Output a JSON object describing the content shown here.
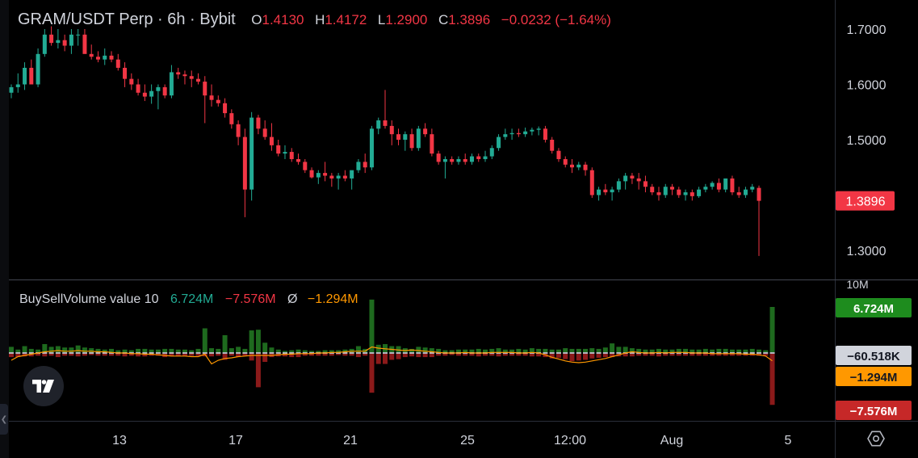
{
  "header": {
    "symbol": "GRAM/USDT Perp · 6h · Bybit",
    "o_label": "O",
    "o_value": "1.4130",
    "h_label": "H",
    "h_value": "1.4172",
    "l_label": "L",
    "l_value": "1.2900",
    "c_label": "C",
    "c_value": "1.3896",
    "change": "−0.0232 (−1.64%)"
  },
  "volume_header": {
    "name": "BuySellVolume value 10",
    "buy": "6.724M",
    "sell": "−7.576M",
    "avg_symbol": "Ø",
    "avg": "−1.294M"
  },
  "colors": {
    "up": "#22ab94",
    "down": "#f23645",
    "buy_volume": "#1e6a1e",
    "sell_volume": "#8b1a1a",
    "average_line": "#ff9800",
    "background": "#000000"
  },
  "chart_data": [
    {
      "type": "candlestick",
      "price_axis": {
        "ticks": [
          "1.7000",
          "1.6000",
          "1.5000",
          "1.3000"
        ],
        "last_price": "1.3896",
        "ylim": [
          1.26,
          1.75
        ]
      },
      "x_ticks": [
        "13",
        "17",
        "21",
        "25",
        "12:00",
        "Aug",
        "5"
      ],
      "candles_ohlc": [
        [
          1.585,
          1.6,
          1.575,
          1.595
        ],
        [
          1.595,
          1.62,
          1.585,
          1.6
        ],
        [
          1.6,
          1.64,
          1.59,
          1.63
        ],
        [
          1.63,
          1.645,
          1.6,
          1.6
        ],
        [
          1.6,
          1.665,
          1.595,
          1.655
        ],
        [
          1.655,
          1.7,
          1.65,
          1.69
        ],
        [
          1.69,
          1.705,
          1.67,
          1.675
        ],
        [
          1.675,
          1.7,
          1.665,
          1.68
        ],
        [
          1.68,
          1.69,
          1.66,
          1.67
        ],
        [
          1.67,
          1.7,
          1.655,
          1.69
        ],
        [
          1.69,
          1.7,
          1.67,
          1.69
        ],
        [
          1.69,
          1.7,
          1.66,
          1.655
        ],
        [
          1.655,
          1.672,
          1.645,
          1.65
        ],
        [
          1.65,
          1.66,
          1.64,
          1.645
        ],
        [
          1.645,
          1.665,
          1.635,
          1.652
        ],
        [
          1.652,
          1.66,
          1.64,
          1.645
        ],
        [
          1.645,
          1.655,
          1.625,
          1.63
        ],
        [
          1.63,
          1.64,
          1.595,
          1.61
        ],
        [
          1.61,
          1.62,
          1.59,
          1.6
        ],
        [
          1.6,
          1.61,
          1.58,
          1.585
        ],
        [
          1.585,
          1.6,
          1.57,
          1.578
        ],
        [
          1.578,
          1.6,
          1.565,
          1.588
        ],
        [
          1.588,
          1.6,
          1.555,
          1.595
        ],
        [
          1.595,
          1.6,
          1.575,
          1.58
        ],
        [
          1.58,
          1.635,
          1.575,
          1.622
        ],
        [
          1.622,
          1.63,
          1.61,
          1.618
        ],
        [
          1.618,
          1.625,
          1.6,
          1.615
        ],
        [
          1.615,
          1.625,
          1.595,
          1.61
        ],
        [
          1.61,
          1.62,
          1.6,
          1.605
        ],
        [
          1.605,
          1.615,
          1.53,
          1.58
        ],
        [
          1.58,
          1.6,
          1.56,
          1.572
        ],
        [
          1.572,
          1.58,
          1.56,
          1.566
        ],
        [
          1.566,
          1.575,
          1.54,
          1.548
        ],
        [
          1.548,
          1.555,
          1.52,
          1.528
        ],
        [
          1.528,
          1.535,
          1.49,
          1.505
        ],
        [
          1.505,
          1.52,
          1.36,
          1.41
        ],
        [
          1.41,
          1.55,
          1.39,
          1.54
        ],
        [
          1.54,
          1.545,
          1.51,
          1.52
        ],
        [
          1.52,
          1.535,
          1.5,
          1.505
        ],
        [
          1.505,
          1.53,
          1.48,
          1.49
        ],
        [
          1.49,
          1.5,
          1.47,
          1.475
        ],
        [
          1.475,
          1.49,
          1.465,
          1.478
        ],
        [
          1.478,
          1.485,
          1.46,
          1.465
        ],
        [
          1.465,
          1.475,
          1.455,
          1.46
        ],
        [
          1.46,
          1.465,
          1.44,
          1.445
        ],
        [
          1.445,
          1.45,
          1.43,
          1.432
        ],
        [
          1.432,
          1.445,
          1.42,
          1.44
        ],
        [
          1.44,
          1.46,
          1.425,
          1.435
        ],
        [
          1.435,
          1.44,
          1.415,
          1.43
        ],
        [
          1.43,
          1.44,
          1.41,
          1.435
        ],
        [
          1.435,
          1.445,
          1.425,
          1.43
        ],
        [
          1.43,
          1.44,
          1.41,
          1.445
        ],
        [
          1.445,
          1.465,
          1.44,
          1.46
        ],
        [
          1.46,
          1.475,
          1.44,
          1.45
        ],
        [
          1.45,
          1.525,
          1.445,
          1.52
        ],
        [
          1.52,
          1.54,
          1.51,
          1.535
        ],
        [
          1.535,
          1.59,
          1.52,
          1.525
        ],
        [
          1.525,
          1.535,
          1.49,
          1.51
        ],
        [
          1.51,
          1.52,
          1.49,
          1.5
        ],
        [
          1.5,
          1.515,
          1.48,
          1.51
        ],
        [
          1.51,
          1.52,
          1.48,
          1.485
        ],
        [
          1.485,
          1.525,
          1.48,
          1.52
        ],
        [
          1.52,
          1.53,
          1.505,
          1.51
        ],
        [
          1.51,
          1.52,
          1.47,
          1.475
        ],
        [
          1.475,
          1.48,
          1.455,
          1.46
        ],
        [
          1.46,
          1.47,
          1.43,
          1.465
        ],
        [
          1.465,
          1.47,
          1.455,
          1.46
        ],
        [
          1.46,
          1.47,
          1.455,
          1.465
        ],
        [
          1.465,
          1.475,
          1.455,
          1.46
        ],
        [
          1.46,
          1.475,
          1.455,
          1.47
        ],
        [
          1.47,
          1.475,
          1.46,
          1.465
        ],
        [
          1.465,
          1.48,
          1.46,
          1.47
        ],
        [
          1.47,
          1.49,
          1.465,
          1.485
        ],
        [
          1.485,
          1.51,
          1.48,
          1.505
        ],
        [
          1.505,
          1.52,
          1.5,
          1.51
        ],
        [
          1.51,
          1.52,
          1.5,
          1.512
        ],
        [
          1.512,
          1.52,
          1.505,
          1.51
        ],
        [
          1.51,
          1.522,
          1.505,
          1.515
        ],
        [
          1.515,
          1.522,
          1.508,
          1.518
        ],
        [
          1.518,
          1.524,
          1.508,
          1.52
        ],
        [
          1.52,
          1.525,
          1.495,
          1.5
        ],
        [
          1.5,
          1.505,
          1.475,
          1.48
        ],
        [
          1.48,
          1.485,
          1.46,
          1.465
        ],
        [
          1.465,
          1.47,
          1.45,
          1.455
        ],
        [
          1.455,
          1.465,
          1.44,
          1.45
        ],
        [
          1.45,
          1.46,
          1.445,
          1.455
        ],
        [
          1.455,
          1.46,
          1.435,
          1.445
        ],
        [
          1.445,
          1.45,
          1.395,
          1.4
        ],
        [
          1.4,
          1.415,
          1.39,
          1.41
        ],
        [
          1.41,
          1.42,
          1.4,
          1.405
        ],
        [
          1.405,
          1.415,
          1.39,
          1.41
        ],
        [
          1.41,
          1.43,
          1.405,
          1.425
        ],
        [
          1.425,
          1.44,
          1.41,
          1.435
        ],
        [
          1.435,
          1.44,
          1.42,
          1.43
        ],
        [
          1.43,
          1.44,
          1.41,
          1.425
        ],
        [
          1.425,
          1.435,
          1.405,
          1.415
        ],
        [
          1.415,
          1.42,
          1.4,
          1.405
        ],
        [
          1.405,
          1.415,
          1.39,
          1.4
        ],
        [
          1.4,
          1.42,
          1.395,
          1.415
        ],
        [
          1.415,
          1.42,
          1.4,
          1.41
        ],
        [
          1.41,
          1.415,
          1.395,
          1.4
        ],
        [
          1.4,
          1.41,
          1.39,
          1.405
        ],
        [
          1.405,
          1.41,
          1.39,
          1.398
        ],
        [
          1.398,
          1.415,
          1.395,
          1.41
        ],
        [
          1.41,
          1.42,
          1.405,
          1.415
        ],
        [
          1.415,
          1.425,
          1.41,
          1.422
        ],
        [
          1.422,
          1.43,
          1.405,
          1.41
        ],
        [
          1.41,
          1.43,
          1.405,
          1.43
        ],
        [
          1.43,
          1.435,
          1.4,
          1.405
        ],
        [
          1.405,
          1.415,
          1.395,
          1.4
        ],
        [
          1.4,
          1.415,
          1.395,
          1.41
        ],
        [
          1.41,
          1.42,
          1.405,
          1.415
        ],
        [
          1.413,
          1.4172,
          1.29,
          1.3896
        ]
      ]
    },
    {
      "type": "bar",
      "title": "BuySellVolume value 10",
      "axis_ticks": [
        "10M"
      ],
      "value_labels": [
        "6.724M",
        "−60.518K",
        "−1.294M",
        "−7.576M"
      ],
      "buy_values": [
        0.9,
        0.5,
        1.0,
        0.6,
        0.5,
        1.3,
        0.9,
        1.0,
        0.8,
        0.8,
        1.1,
        0.8,
        0.7,
        0.6,
        0.5,
        0.6,
        0.4,
        0.5,
        0.4,
        0.6,
        0.6,
        0.5,
        0.5,
        0.6,
        0.6,
        0.5,
        0.5,
        0.4,
        0.6,
        3.6,
        0.7,
        0.6,
        2.6,
        0.7,
        0.9,
        0.6,
        3.3,
        3.4,
        1.5,
        0.8,
        0.5,
        0.3,
        0.4,
        0.5,
        0.4,
        0.3,
        0.3,
        0.4,
        0.4,
        0.4,
        0.5,
        0.6,
        1.0,
        0.6,
        7.8,
        1.2,
        1.3,
        1.0,
        1.0,
        0.7,
        0.6,
        0.9,
        0.8,
        0.7,
        0.6,
        0.4,
        0.4,
        0.5,
        0.5,
        0.5,
        0.6,
        0.5,
        0.6,
        0.7,
        0.5,
        0.5,
        0.6,
        0.5,
        0.7,
        0.6,
        0.6,
        0.5,
        0.5,
        0.7,
        0.6,
        0.6,
        0.6,
        0.7,
        0.6,
        0.8,
        1.4,
        0.9,
        0.9,
        0.7,
        0.6,
        0.5,
        0.5,
        0.6,
        0.5,
        0.5,
        0.6,
        0.6,
        0.5,
        0.5,
        0.6,
        0.5,
        0.6,
        0.6,
        0.5,
        0.5,
        0.5,
        0.6,
        0.5,
        0.4,
        6.724
      ],
      "sell_values": [
        0.6,
        0.6,
        0.5,
        0.5,
        0.4,
        0.5,
        0.4,
        0.6,
        0.4,
        0.4,
        0.5,
        0.4,
        0.3,
        0.4,
        0.4,
        0.4,
        0.4,
        0.5,
        0.4,
        0.5,
        0.5,
        0.4,
        0.4,
        0.6,
        0.5,
        0.5,
        0.4,
        0.4,
        0.4,
        0.5,
        0.5,
        0.4,
        1.0,
        0.4,
        0.6,
        0.4,
        1.1,
        5.0,
        1.3,
        0.6,
        0.5,
        0.5,
        0.6,
        0.6,
        0.4,
        0.4,
        0.4,
        0.4,
        0.4,
        0.3,
        0.4,
        0.4,
        0.6,
        0.4,
        5.8,
        1.6,
        1.6,
        1.0,
        0.9,
        0.6,
        0.5,
        0.6,
        0.6,
        0.6,
        0.4,
        0.4,
        0.3,
        0.4,
        0.4,
        0.4,
        0.5,
        0.4,
        0.4,
        0.5,
        0.4,
        0.4,
        0.4,
        0.4,
        0.5,
        0.5,
        0.6,
        0.8,
        0.7,
        0.9,
        1.2,
        1.1,
        1.0,
        0.8,
        0.7,
        0.6,
        0.6,
        0.5,
        0.5,
        0.5,
        0.4,
        0.4,
        0.4,
        0.5,
        0.4,
        0.4,
        0.4,
        0.4,
        0.4,
        0.4,
        0.4,
        0.4,
        0.4,
        0.4,
        0.4,
        0.4,
        0.4,
        0.4,
        0.4,
        0.4,
        7.576
      ],
      "average_values": [
        -1.2,
        -0.6,
        -0.4,
        -0.2,
        0.0,
        0.2,
        0.3,
        0.4,
        0.3,
        0.3,
        0.4,
        0.3,
        0.3,
        0.2,
        0.2,
        0.1,
        0.0,
        0.0,
        -0.1,
        -0.1,
        -0.2,
        -0.2,
        -0.3,
        -0.4,
        -0.5,
        -0.5,
        -0.5,
        -0.6,
        -0.6,
        -0.2,
        -1.8,
        -1.2,
        -0.9,
        -0.8,
        -0.6,
        -0.5,
        -0.4,
        -0.4,
        -0.4,
        -0.4,
        -0.3,
        -0.2,
        -0.2,
        -0.1,
        -0.1,
        -0.1,
        0.0,
        0.0,
        0.1,
        0.1,
        0.2,
        0.3,
        0.3,
        0.3,
        1.0,
        0.8,
        0.7,
        0.6,
        0.5,
        0.4,
        0.5,
        0.4,
        0.3,
        0.2,
        0.1,
        0.0,
        0.0,
        0.0,
        0.1,
        0.0,
        0.0,
        0.0,
        0.1,
        0.1,
        0.1,
        0.1,
        0.0,
        0.0,
        0.1,
        0.0,
        -0.3,
        -0.7,
        -1.0,
        -1.3,
        -1.5,
        -1.6,
        -1.5,
        -1.3,
        -1.1,
        -0.9,
        -0.6,
        -0.3,
        0.0,
        0.2,
        0.1,
        0.0,
        0.0,
        0.1,
        0.0,
        0.1,
        0.1,
        0.1,
        0.0,
        0.0,
        0.0,
        -0.1,
        -0.1,
        -0.1,
        -0.1,
        -0.1,
        -0.2,
        -0.2,
        -0.3,
        -0.5,
        -1.294
      ]
    }
  ]
}
